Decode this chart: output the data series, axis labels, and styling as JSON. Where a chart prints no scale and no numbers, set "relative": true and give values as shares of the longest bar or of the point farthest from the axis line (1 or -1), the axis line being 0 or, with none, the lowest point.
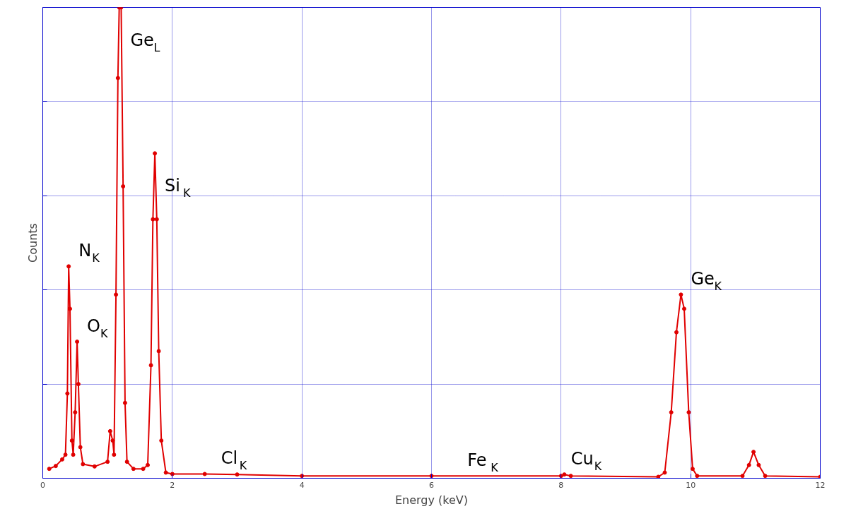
{
  "chart_data": {
    "type": "line",
    "relative": true,
    "xlabel": "Energy (keV)",
    "ylabel": "Counts",
    "xlim": [
      0,
      12
    ],
    "xticks": [
      0,
      2,
      4,
      6,
      8,
      10,
      12
    ],
    "grid": true,
    "marker": "circle",
    "line_style": "solid",
    "tick_labels": "x",
    "series": [
      {
        "color": "#e00000",
        "x": [
          0.1,
          0.2,
          0.3,
          0.35,
          0.38,
          0.4,
          0.42,
          0.45,
          0.47,
          0.5,
          0.53,
          0.55,
          0.58,
          0.62,
          0.8,
          1.0,
          1.04,
          1.08,
          1.1,
          1.13,
          1.16,
          1.18,
          1.21,
          1.24,
          1.27,
          1.3,
          1.4,
          1.55,
          1.62,
          1.67,
          1.7,
          1.73,
          1.76,
          1.79,
          1.83,
          1.9,
          2.0,
          2.5,
          3,
          4,
          6,
          8,
          8.05,
          8.15,
          9.5,
          9.6,
          9.7,
          9.78,
          9.85,
          9.9,
          9.97,
          10.03,
          10.1,
          10.8,
          10.9,
          10.97,
          11.05,
          11.15,
          12
        ],
        "values": [
          0.02,
          0.026,
          0.04,
          0.05,
          0.18,
          0.45,
          0.36,
          0.08,
          0.05,
          0.14,
          0.29,
          0.2,
          0.066,
          0.03,
          0.025,
          0.035,
          0.1,
          0.08,
          0.05,
          0.39,
          0.85,
          1.0,
          1.0,
          0.62,
          0.16,
          0.035,
          0.02,
          0.02,
          0.028,
          0.24,
          0.55,
          0.69,
          0.55,
          0.27,
          0.08,
          0.012,
          0.009,
          0.009,
          0.008,
          0.005,
          0.005,
          0.005,
          0.008,
          0.005,
          0.003,
          0.012,
          0.14,
          0.31,
          0.39,
          0.36,
          0.14,
          0.02,
          0.005,
          0.005,
          0.028,
          0.056,
          0.028,
          0.005,
          0.003
        ]
      }
    ],
    "annotations": [
      {
        "text": "N$_{K}$",
        "x": 0.4,
        "y": 0.45
      },
      {
        "text": "O$_{K}$",
        "x": 0.53,
        "y": 0.29
      },
      {
        "text": "Ge$_{L}$",
        "x": 1.2,
        "y": 1.0
      },
      {
        "text": "Si$_{K}$",
        "x": 1.73,
        "y": 0.69
      },
      {
        "text": "Cl$_{K}$",
        "x": 2.6,
        "y": 0.009
      },
      {
        "text": "Fe$_{K}$",
        "x": 6.4,
        "y": 0.005
      },
      {
        "text": "Cu$_{K}$",
        "x": 8.0,
        "y": 0.008
      },
      {
        "text": "Ge$_{K}$",
        "x": 9.85,
        "y": 0.39
      }
    ]
  }
}
